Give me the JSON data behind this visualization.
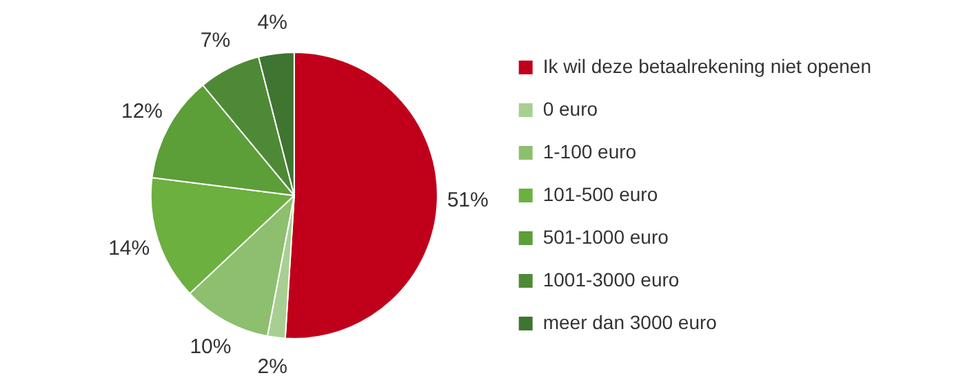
{
  "chart_data": {
    "type": "pie",
    "categories": [
      "Ik wil deze betaalrekening niet openen",
      "0 euro",
      "1-100 euro",
      "101-500 euro",
      "501-1000 euro",
      "1001-3000 euro",
      "meer dan 3000 euro"
    ],
    "values": [
      51,
      2,
      10,
      14,
      12,
      7,
      4
    ],
    "value_labels": [
      "51%",
      "2%",
      "10%",
      "14%",
      "12%",
      "7%",
      "4%"
    ],
    "colors": [
      "#c0001a",
      "#a8cf92",
      "#8dbf6e",
      "#6cb040",
      "#5c9e38",
      "#4e8a35",
      "#3f7431"
    ],
    "legend": "right"
  }
}
